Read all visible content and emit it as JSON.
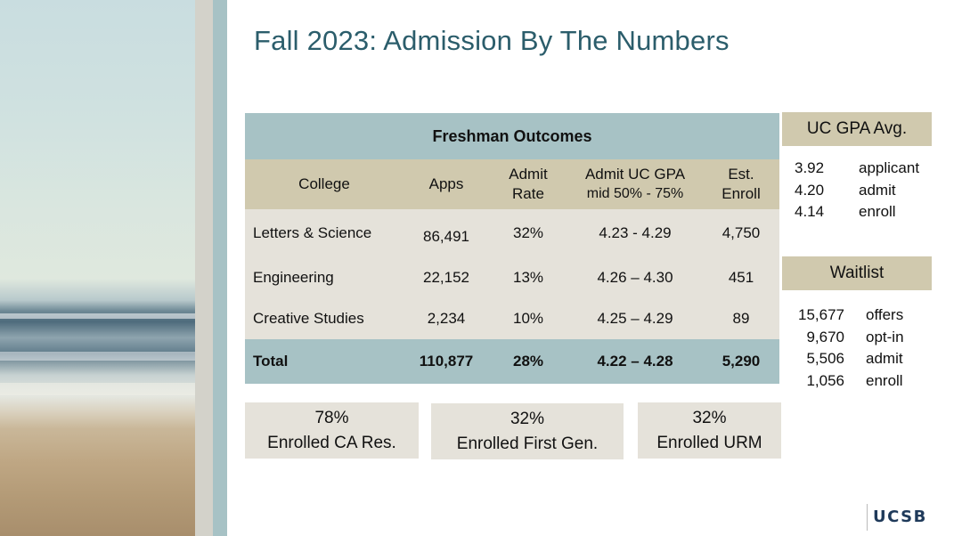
{
  "title": "Fall 2023: Admission By The Numbers",
  "table": {
    "caption": "Freshman Outcomes",
    "headers": {
      "college": "College",
      "apps": "Apps",
      "admit_rate": [
        "Admit",
        "Rate"
      ],
      "gpa": [
        "Admit UC GPA",
        "mid 50% - 75%"
      ],
      "enroll": [
        "Est.",
        "Enroll"
      ]
    },
    "rows": [
      {
        "college": "Letters & Science",
        "apps": "86,491",
        "rate": "32%",
        "gpa": "4.23 - 4.29",
        "enroll": "4,750"
      },
      {
        "college": "Engineering",
        "apps": "22,152",
        "rate": "13%",
        "gpa": "4.26 – 4.30",
        "enroll": "451"
      },
      {
        "college": "Creative Studies",
        "apps": "2,234",
        "rate": "10%",
        "gpa": "4.25 – 4.29",
        "enroll": "89"
      }
    ],
    "total": {
      "college": "Total",
      "apps": "110,877",
      "rate": "28%",
      "gpa": "4.22 – 4.28",
      "enroll": "5,290"
    }
  },
  "gpa_avg": {
    "title": "UC GPA Avg.",
    "items": [
      {
        "value": "3.92",
        "label": "applicant"
      },
      {
        "value": "4.20",
        "label": "admit"
      },
      {
        "value": "4.14",
        "label": "enroll"
      }
    ]
  },
  "waitlist": {
    "title": "Waitlist",
    "items": [
      {
        "value": "15,677",
        "label": "offers"
      },
      {
        "value": "9,670",
        "label": "opt-in"
      },
      {
        "value": "5,506",
        "label": "admit"
      },
      {
        "value": "1,056",
        "label": "enroll"
      }
    ]
  },
  "stats": [
    {
      "value": "78%",
      "label": "Enrolled CA Res."
    },
    {
      "value": "32%",
      "label": "Enrolled First Gen."
    },
    {
      "value": "32%",
      "label": "Enrolled URM"
    }
  ],
  "logo": "UCSB",
  "colors": {
    "title": "#2b5d6b",
    "teal": "#a7c2c5",
    "tan": "#d0c9ae",
    "light": "#e5e2da"
  }
}
